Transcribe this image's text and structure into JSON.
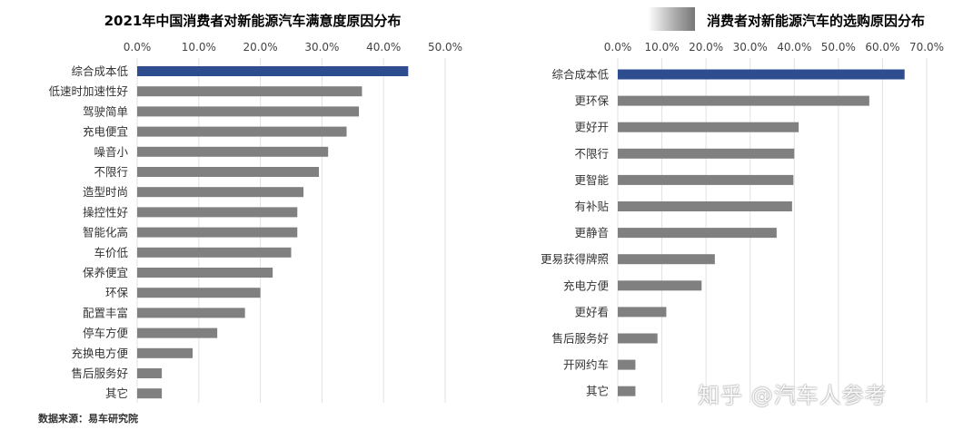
{
  "chart_data": [
    {
      "type": "bar",
      "orientation": "horizontal",
      "title": "2021年中国消费者对新能源汽车满意度原因分布",
      "xlim": [
        0,
        50
      ],
      "x_ticks": [
        "0.0%",
        "10.0%",
        "20.0%",
        "30.0%",
        "40.0%",
        "50.0%"
      ],
      "categories": [
        "综合成本低",
        "低速时加速性好",
        "驾驶简单",
        "充电便宜",
        "噪音小",
        "不限行",
        "造型时尚",
        "操控性好",
        "智能化高",
        "车价低",
        "保养便宜",
        "环保",
        "配置丰富",
        "停车方便",
        "充换电方便",
        "售后服务好",
        "其它"
      ],
      "values": [
        44,
        36.5,
        36,
        34,
        31,
        29.5,
        27,
        26,
        26,
        25,
        22,
        20,
        17.5,
        13,
        9,
        4,
        4
      ],
      "highlight_color": "#2e4d8f",
      "bar_color": "#808080",
      "grid": true
    },
    {
      "type": "bar",
      "orientation": "horizontal",
      "title": "消费者对新能源汽车的选购原因分布",
      "xlim": [
        0,
        70
      ],
      "x_ticks": [
        "0.0%",
        "10.0%",
        "20.0%",
        "30.0%",
        "40.0%",
        "50.0%",
        "60.0%",
        "70.0%"
      ],
      "categories": [
        "综合成本低",
        "更环保",
        "更好开",
        "不限行",
        "更智能",
        "有补贴",
        "更静音",
        "更易获得牌照",
        "充电方便",
        "更好看",
        "售后服务好",
        "开网约车",
        "其它"
      ],
      "values": [
        65,
        57,
        41,
        40,
        39.8,
        39.5,
        36,
        22,
        19,
        11,
        9,
        4,
        4
      ],
      "highlight_color": "#2e4d8f",
      "bar_color": "#808080",
      "grid": true
    }
  ],
  "source_text": "数据来源：易车研究院",
  "watermark_text": "知乎 @汽车人参考"
}
